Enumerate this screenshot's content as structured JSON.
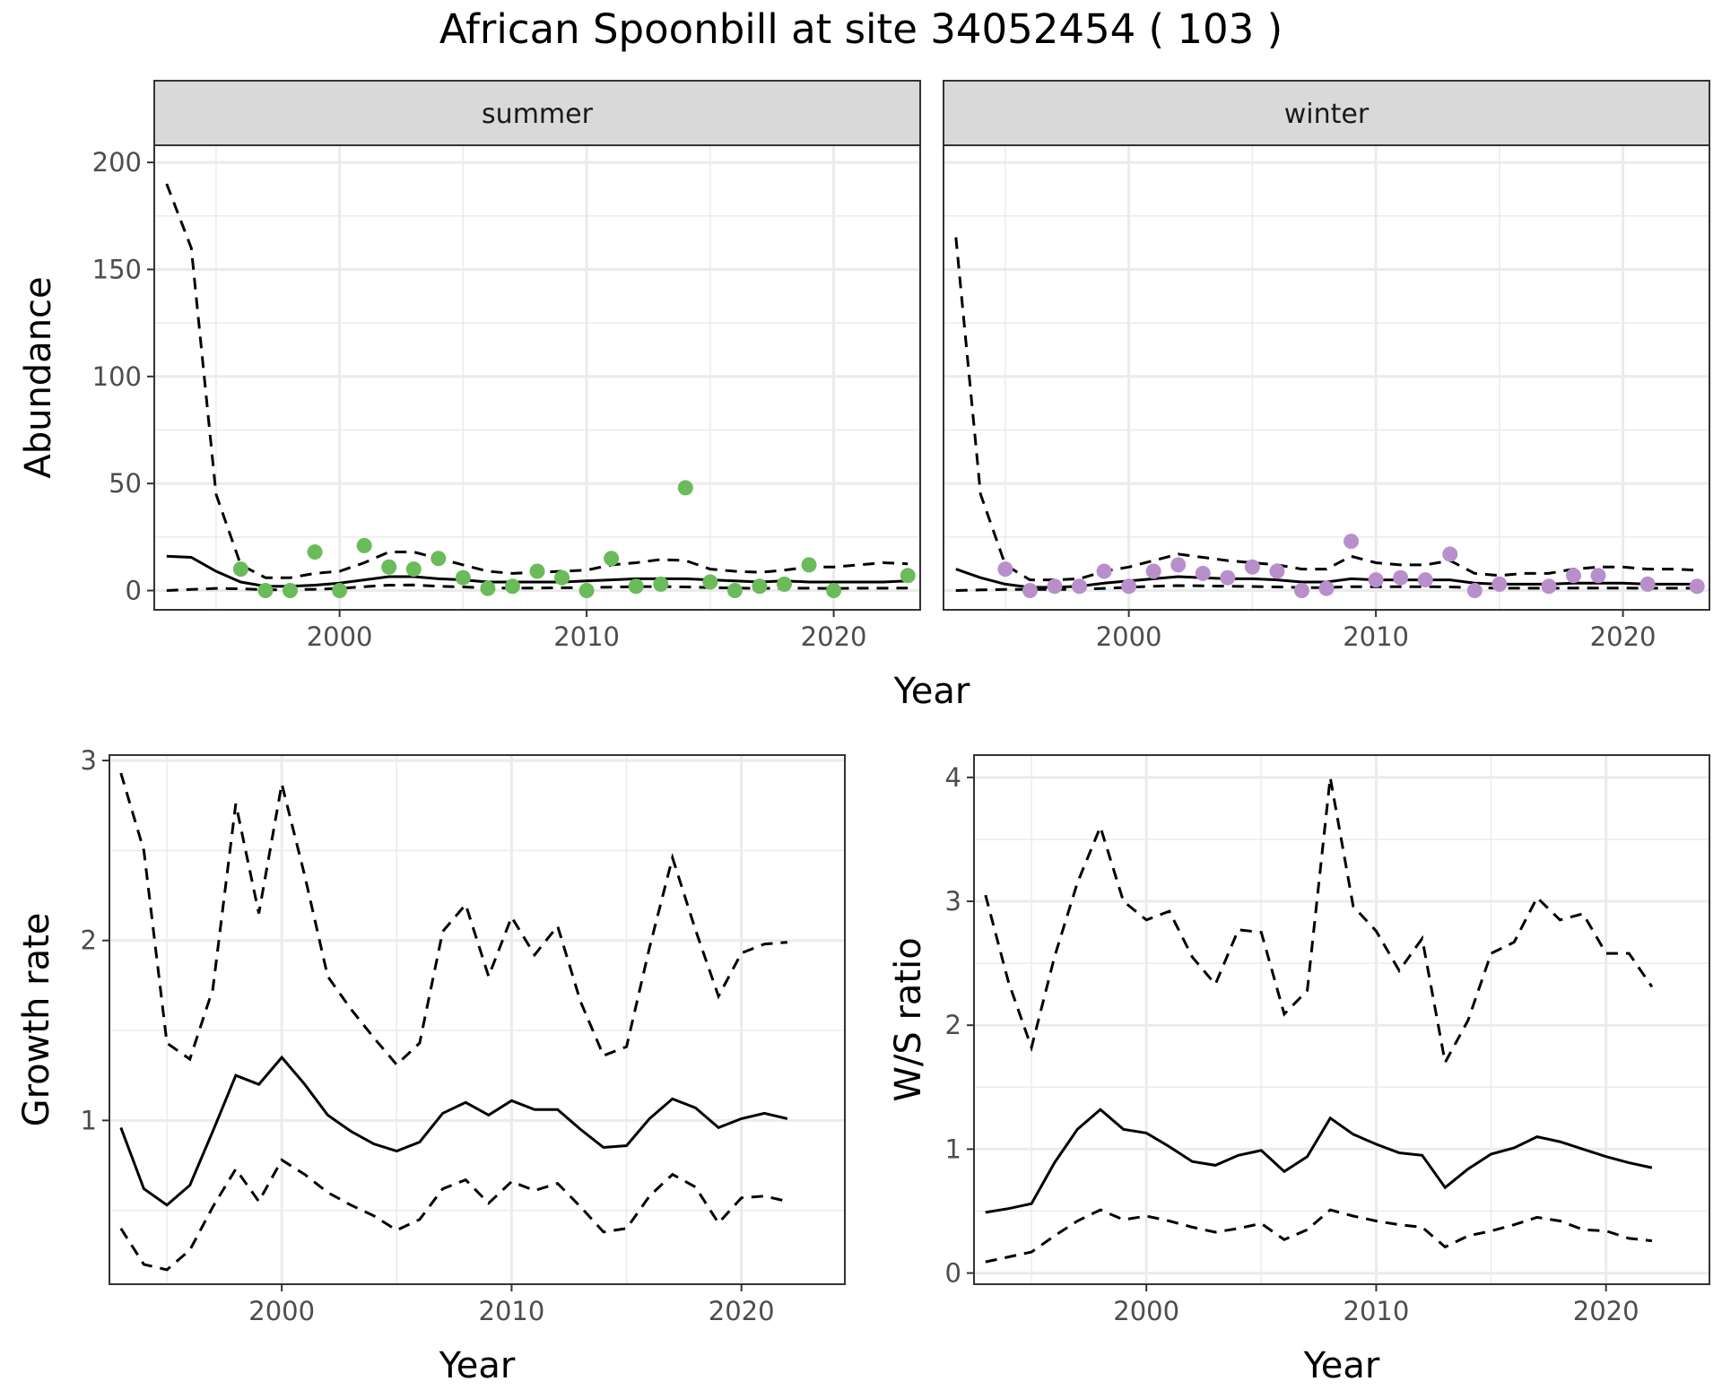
{
  "title": "African Spoonbill at site 34052454 ( 103 )",
  "colors": {
    "summer_points": "#6ABB5A",
    "winter_points": "#B98FCB",
    "line": "#000000",
    "grid": "#EBEBEB",
    "strip_bg": "#D9D9D9"
  },
  "chart_data": [
    {
      "id": "abundance",
      "type": "scatter",
      "facets": [
        "summer",
        "winter"
      ],
      "xlabel": "Year",
      "ylabel": "Abundance",
      "xlim": [
        1992.5,
        2023.5
      ],
      "ylim": [
        -9,
        208
      ],
      "xticks": [
        2000,
        2010,
        2020
      ],
      "yticks": [
        0,
        50,
        100,
        150,
        200
      ],
      "grid": true,
      "panels": {
        "summer": {
          "points": {
            "x": [
              1996,
              1997,
              1998,
              1999,
              2000,
              2001,
              2002,
              2003,
              2004,
              2005,
              2006,
              2007,
              2008,
              2009,
              2010,
              2011,
              2012,
              2013,
              2014,
              2015,
              2016,
              2017,
              2018,
              2019,
              2020,
              2023
            ],
            "y": [
              10,
              0,
              0,
              18,
              0,
              21,
              11,
              10,
              15,
              6,
              1,
              2,
              9,
              6,
              0,
              15,
              2,
              3,
              48,
              4,
              0,
              2,
              3,
              12,
              0,
              7
            ]
          },
          "fit": {
            "x": [
              1993,
              1994,
              1995,
              1996,
              1997,
              1998,
              1999,
              2000,
              2001,
              2002,
              2003,
              2004,
              2005,
              2006,
              2007,
              2008,
              2009,
              2010,
              2011,
              2012,
              2013,
              2014,
              2015,
              2016,
              2017,
              2018,
              2019,
              2020,
              2021,
              2022,
              2023
            ],
            "y": [
              16,
              15.5,
              9,
              4,
              2,
              2,
              2.5,
              3.5,
              5,
              6.5,
              6.5,
              5.5,
              5,
              4,
              4,
              4,
              4,
              4.5,
              5,
              5.5,
              5.5,
              5.5,
              5,
              4.5,
              4,
              4.5,
              4,
              4,
              4,
              4,
              4.5
            ]
          },
          "lower": {
            "x": [
              1993,
              1994,
              1995,
              1996,
              1997,
              1998,
              1999,
              2000,
              2001,
              2002,
              2003,
              2004,
              2005,
              2006,
              2007,
              2008,
              2009,
              2010,
              2011,
              2012,
              2013,
              2014,
              2015,
              2016,
              2017,
              2018,
              2019,
              2020,
              2021,
              2022,
              2023
            ],
            "y": [
              0,
              0.5,
              1,
              0.8,
              0.4,
              0.4,
              0.6,
              1,
              1.8,
              2.5,
              2.6,
              2,
              1.7,
              1.2,
              1.2,
              1.2,
              1.3,
              1.4,
              1.6,
              1.8,
              1.9,
              1.7,
              1.4,
              1.2,
              1,
              1.1,
              1.1,
              1,
              1.1,
              1.1,
              1.2
            ]
          },
          "upper": {
            "x": [
              1993,
              1994,
              1995,
              1996,
              1997,
              1998,
              1999,
              2000,
              2001,
              2002,
              2003,
              2004,
              2005,
              2006,
              2007,
              2008,
              2009,
              2010,
              2011,
              2012,
              2013,
              2014,
              2015,
              2016,
              2017,
              2018,
              2019,
              2020,
              2021,
              2022,
              2023
            ],
            "y": [
              190,
              160,
              45,
              12,
              6,
              6,
              8,
              9,
              13,
              18,
              18,
              15,
              12,
              9,
              8,
              8.5,
              9,
              9.5,
              12,
              13,
              14.5,
              14,
              10,
              9,
              8.5,
              9.5,
              11,
              11,
              12,
              13,
              12.5
            ]
          }
        },
        "winter": {
          "points": {
            "x": [
              1995,
              1996,
              1997,
              1998,
              1999,
              2000,
              2001,
              2002,
              2003,
              2004,
              2005,
              2006,
              2007,
              2008,
              2009,
              2010,
              2011,
              2012,
              2013,
              2014,
              2015,
              2017,
              2018,
              2019,
              2021,
              2023
            ],
            "y": [
              10,
              0,
              2,
              2,
              9,
              2,
              9,
              12,
              8,
              6,
              11,
              9,
              0,
              1,
              23,
              5,
              6,
              5,
              17,
              0,
              3,
              2,
              7,
              7,
              3,
              2
            ]
          },
          "fit": {
            "x": [
              1993,
              1994,
              1995,
              1996,
              1997,
              1998,
              1999,
              2000,
              2001,
              2002,
              2003,
              2004,
              2005,
              2006,
              2007,
              2008,
              2009,
              2010,
              2011,
              2012,
              2013,
              2014,
              2015,
              2016,
              2017,
              2018,
              2019,
              2020,
              2021,
              2022,
              2023
            ],
            "y": [
              10,
              6,
              3,
              1.5,
              1.5,
              2,
              3.5,
              4.5,
              5.5,
              6.5,
              6,
              5.5,
              5.5,
              5,
              4,
              4,
              5.5,
              5,
              5,
              5,
              5,
              3.5,
              3,
              3,
              3,
              3.5,
              3.5,
              3.5,
              3,
              3,
              3
            ]
          },
          "lower": {
            "x": [
              1993,
              1994,
              1995,
              1996,
              1997,
              1998,
              1999,
              2000,
              2001,
              2002,
              2003,
              2004,
              2005,
              2006,
              2007,
              2008,
              2009,
              2010,
              2011,
              2012,
              2013,
              2014,
              2015,
              2016,
              2017,
              2018,
              2019,
              2020,
              2021,
              2022,
              2023
            ],
            "y": [
              0,
              0.3,
              0.5,
              0.5,
              0.5,
              0.6,
              1,
              1.5,
              2,
              2.3,
              2.2,
              2,
              1.9,
              1.7,
              1.4,
              1.4,
              1.8,
              1.8,
              1.8,
              1.8,
              1.7,
              1.3,
              1.1,
              1.1,
              1.1,
              1.2,
              1.2,
              1.2,
              1.1,
              1.1,
              1.1
            ]
          },
          "upper": {
            "x": [
              1993,
              1994,
              1995,
              1996,
              1997,
              1998,
              1999,
              2000,
              2001,
              2002,
              2003,
              2004,
              2005,
              2006,
              2007,
              2008,
              2009,
              2010,
              2011,
              2012,
              2013,
              2014,
              2015,
              2016,
              2017,
              2018,
              2019,
              2020,
              2021,
              2022,
              2023
            ],
            "y": [
              165,
              45,
              12,
              5,
              5,
              5.5,
              9,
              11,
              14,
              17,
              15.5,
              14,
              13,
              12,
              10,
              10,
              16,
              13,
              12,
              12,
              14,
              8,
              7,
              8,
              8,
              10,
              11,
              11,
              10,
              10,
              9.5
            ]
          }
        }
      }
    },
    {
      "id": "growth-rate",
      "type": "line",
      "xlabel": "Year",
      "ylabel": "Growth rate",
      "xlim": [
        1992.5,
        2024.5
      ],
      "ylim": [
        0.09,
        3.03
      ],
      "xticks": [
        2000,
        2010,
        2020
      ],
      "yticks": [
        1,
        2,
        3
      ],
      "grid": true,
      "x": [
        1993,
        1994,
        1995,
        1996,
        1997,
        1998,
        1999,
        2000,
        2001,
        2002,
        2003,
        2004,
        2005,
        2006,
        2007,
        2008,
        2009,
        2010,
        2011,
        2012,
        2013,
        2014,
        2015,
        2016,
        2017,
        2018,
        2019,
        2020,
        2021,
        2022
      ],
      "series": [
        {
          "role": "estimate",
          "values": [
            0.96,
            0.62,
            0.53,
            0.64,
            0.94,
            1.25,
            1.2,
            1.35,
            1.2,
            1.03,
            0.94,
            0.87,
            0.83,
            0.88,
            1.04,
            1.1,
            1.03,
            1.11,
            1.06,
            1.06,
            0.95,
            0.85,
            0.86,
            1.01,
            1.12,
            1.07,
            0.96,
            1.01,
            1.04,
            1.01
          ]
        },
        {
          "role": "upper",
          "values": [
            2.93,
            2.5,
            1.43,
            1.34,
            1.73,
            2.76,
            2.15,
            2.87,
            2.36,
            1.8,
            1.62,
            1.46,
            1.31,
            1.43,
            2.05,
            2.2,
            1.8,
            2.13,
            1.92,
            2.08,
            1.66,
            1.36,
            1.41,
            1.96,
            2.46,
            2.06,
            1.69,
            1.93,
            1.98,
            1.99
          ]
        },
        {
          "role": "lower",
          "values": [
            0.4,
            0.2,
            0.17,
            0.28,
            0.52,
            0.73,
            0.55,
            0.78,
            0.7,
            0.6,
            0.53,
            0.47,
            0.39,
            0.45,
            0.62,
            0.67,
            0.54,
            0.66,
            0.61,
            0.65,
            0.52,
            0.38,
            0.4,
            0.58,
            0.7,
            0.63,
            0.43,
            0.57,
            0.58,
            0.55
          ]
        }
      ]
    },
    {
      "id": "ws-ratio",
      "type": "line",
      "xlabel": "Year",
      "ylabel": "W/S ratio",
      "xlim": [
        1992.5,
        2024.5
      ],
      "ylim": [
        -0.09,
        4.18
      ],
      "xticks": [
        2000,
        2010,
        2020
      ],
      "yticks": [
        0,
        1,
        2,
        3,
        4
      ],
      "grid": true,
      "x": [
        1993,
        1994,
        1995,
        1996,
        1997,
        1998,
        1999,
        2000,
        2001,
        2002,
        2003,
        2004,
        2005,
        2006,
        2007,
        2008,
        2009,
        2010,
        2011,
        2012,
        2013,
        2014,
        2015,
        2016,
        2017,
        2018,
        2019,
        2020,
        2021,
        2022
      ],
      "series": [
        {
          "role": "estimate",
          "values": [
            0.49,
            0.52,
            0.56,
            0.89,
            1.16,
            1.32,
            1.16,
            1.13,
            1.02,
            0.9,
            0.87,
            0.95,
            0.99,
            0.82,
            0.94,
            1.25,
            1.12,
            1.04,
            0.97,
            0.95,
            0.69,
            0.84,
            0.96,
            1.01,
            1.1,
            1.06,
            1,
            0.94,
            0.89,
            0.85
          ]
        },
        {
          "role": "upper",
          "values": [
            3.05,
            2.35,
            1.82,
            2.55,
            3.15,
            3.6,
            3,
            2.85,
            2.92,
            2.55,
            2.33,
            2.77,
            2.75,
            2.09,
            2.28,
            4,
            2.96,
            2.76,
            2.44,
            2.7,
            1.7,
            2.04,
            2.58,
            2.67,
            3.03,
            2.85,
            2.9,
            2.58,
            2.58,
            2.31
          ]
        },
        {
          "role": "lower",
          "values": [
            0.09,
            0.13,
            0.17,
            0.3,
            0.42,
            0.51,
            0.43,
            0.46,
            0.42,
            0.37,
            0.33,
            0.36,
            0.4,
            0.27,
            0.35,
            0.51,
            0.46,
            0.42,
            0.39,
            0.37,
            0.21,
            0.3,
            0.34,
            0.39,
            0.45,
            0.42,
            0.35,
            0.34,
            0.28,
            0.26
          ]
        }
      ]
    }
  ]
}
